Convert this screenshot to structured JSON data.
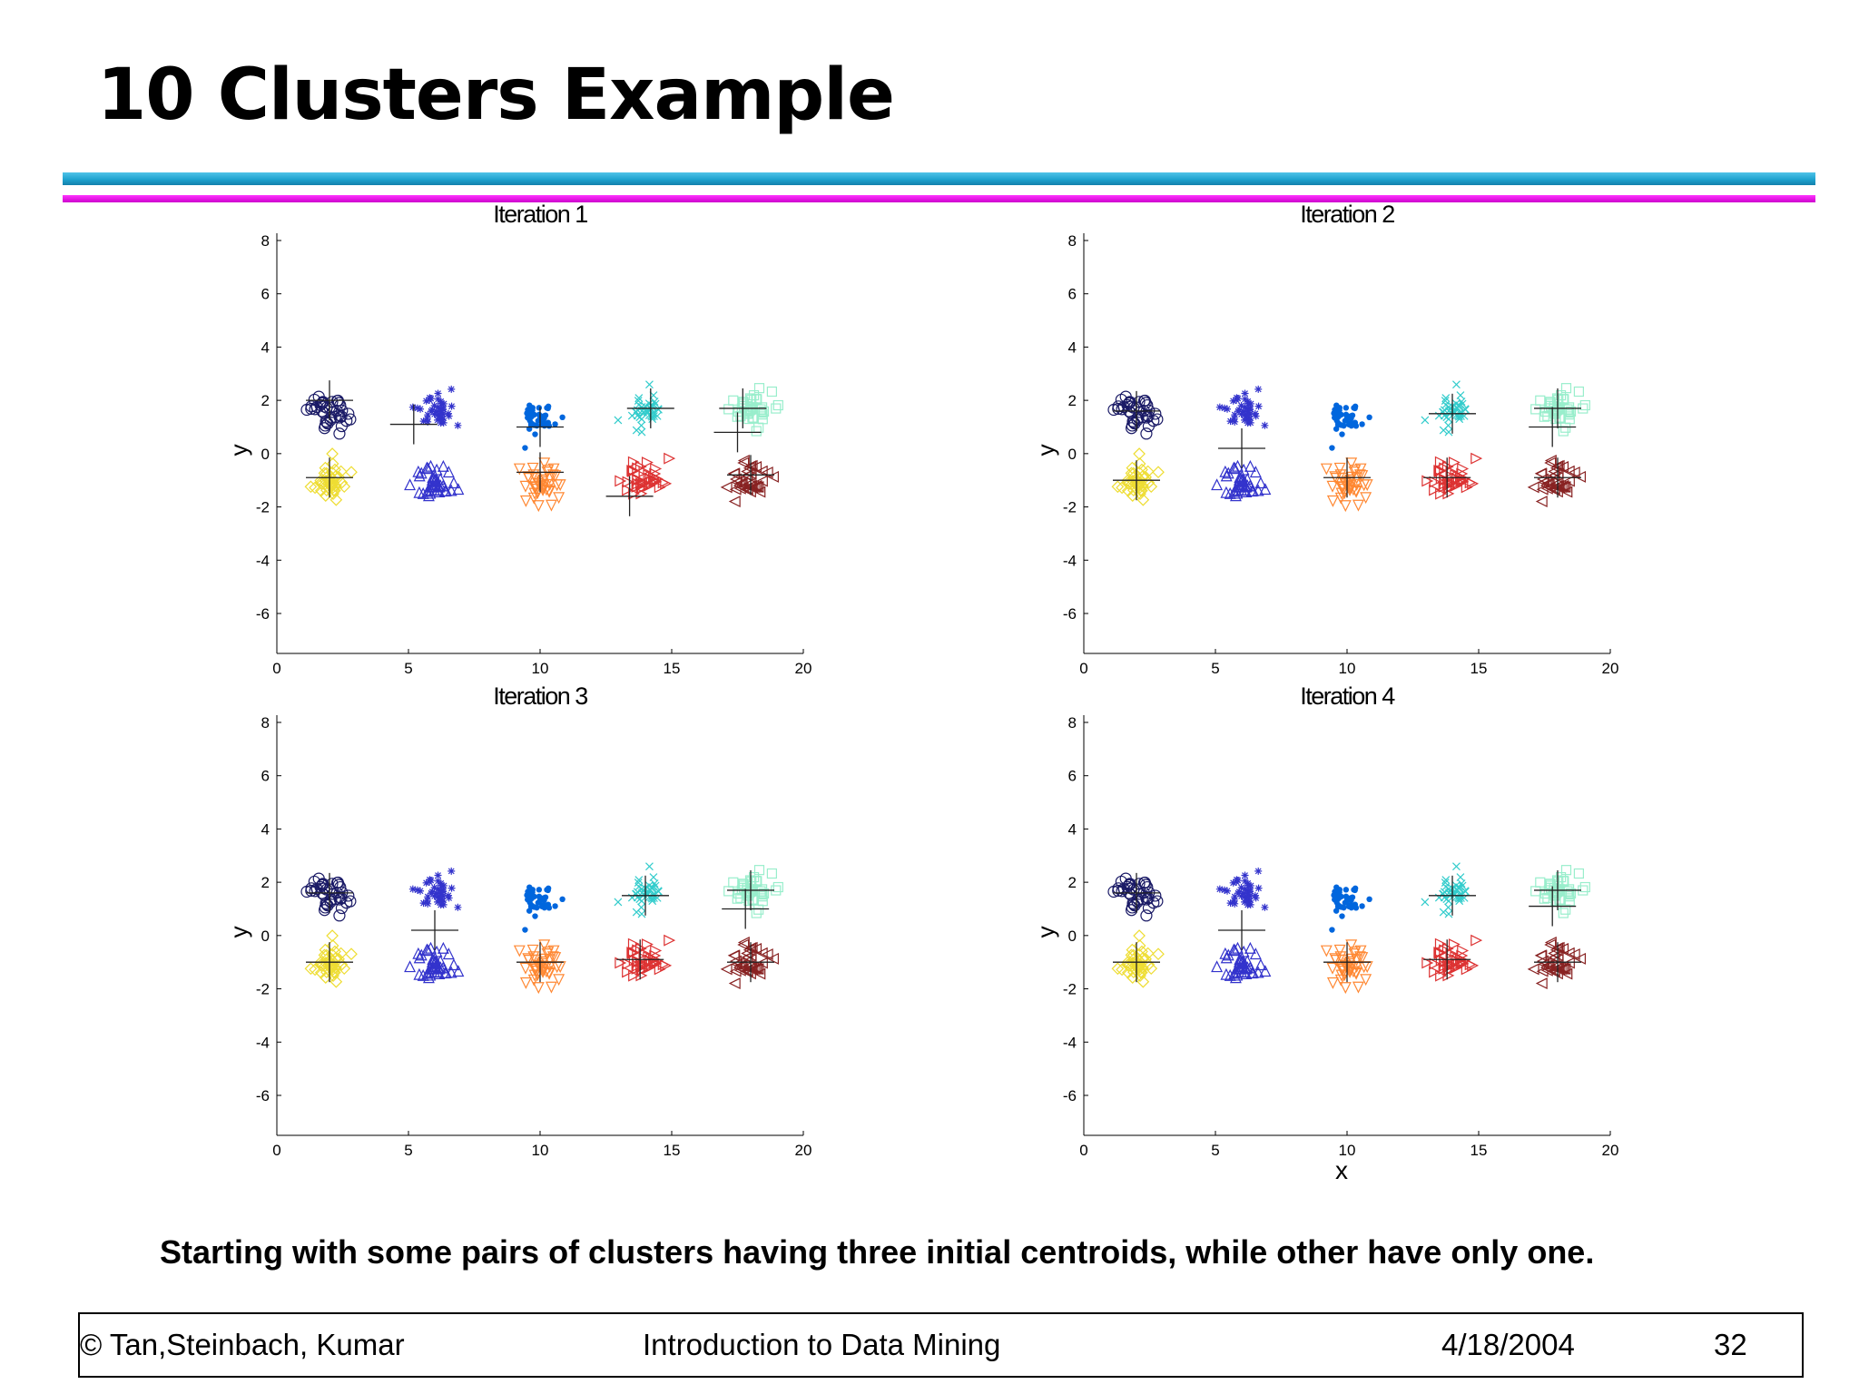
{
  "slide": {
    "title": "10 Clusters Example",
    "caption": "Starting with some pairs of clusters having three initial centroids, while other have only one.",
    "footer": {
      "left": "© Tan,Steinbach, Kumar",
      "center": "Introduction to Data Mining",
      "date": "4/18/2004",
      "page": "32"
    },
    "colors": {
      "cyan_rule": "#1ea3cf",
      "magenta_rule": "#e000e0"
    }
  },
  "chart_data": [
    {
      "type": "scatter",
      "title": "Iteration 1",
      "xlabel": "",
      "ylabel": "y",
      "xlim": [
        0,
        20
      ],
      "ylim": [
        -7.5,
        8
      ],
      "xticks": [
        0,
        5,
        10,
        15,
        20
      ],
      "yticks": [
        8,
        6,
        4,
        2,
        0,
        -2,
        -4,
        -6
      ],
      "clusters": [
        {
          "marker": "circle",
          "color": "#1a1a66",
          "center": [
            2,
            1.6
          ]
        },
        {
          "marker": "star",
          "color": "#3333cc",
          "center": [
            6,
            1.6
          ]
        },
        {
          "marker": "dot",
          "color": "#0066dd",
          "center": [
            10,
            1.4
          ]
        },
        {
          "marker": "x",
          "color": "#33cccc",
          "center": [
            14,
            1.6
          ]
        },
        {
          "marker": "square",
          "color": "#99eecc",
          "center": [
            18,
            1.6
          ]
        },
        {
          "marker": "diamond",
          "color": "#eedd33",
          "center": [
            2,
            -1
          ]
        },
        {
          "marker": "triangle-up",
          "color": "#3333cc",
          "center": [
            6,
            -1.1
          ]
        },
        {
          "marker": "triangle-down",
          "color": "#ff8833",
          "center": [
            10,
            -1.1
          ]
        },
        {
          "marker": "triangle-right",
          "color": "#dd3333",
          "center": [
            14,
            -1
          ]
        },
        {
          "marker": "triangle-left",
          "color": "#882222",
          "center": [
            18,
            -1
          ]
        }
      ],
      "centroids": [
        [
          2,
          2
        ],
        [
          2,
          -0.9
        ],
        [
          5.2,
          1.1
        ],
        [
          10,
          1
        ],
        [
          10,
          -0.7
        ],
        [
          14.2,
          1.7
        ],
        [
          13.4,
          -1.6
        ],
        [
          17.7,
          1.7
        ],
        [
          17.5,
          0.8
        ],
        [
          18,
          -0.8
        ]
      ]
    },
    {
      "type": "scatter",
      "title": "Iteration 2",
      "xlabel": "",
      "ylabel": "y",
      "xlim": [
        0,
        20
      ],
      "ylim": [
        -7.5,
        8
      ],
      "xticks": [
        0,
        5,
        10,
        15,
        20
      ],
      "yticks": [
        8,
        6,
        4,
        2,
        0,
        -2,
        -4,
        -6
      ],
      "clusters": [
        {
          "marker": "circle",
          "color": "#1a1a66",
          "center": [
            2,
            1.6
          ]
        },
        {
          "marker": "star",
          "color": "#3333cc",
          "center": [
            6,
            1.6
          ]
        },
        {
          "marker": "dot",
          "color": "#0066dd",
          "center": [
            10,
            1.4
          ]
        },
        {
          "marker": "x",
          "color": "#33cccc",
          "center": [
            14,
            1.6
          ]
        },
        {
          "marker": "square",
          "color": "#99eecc",
          "center": [
            18,
            1.6
          ]
        },
        {
          "marker": "diamond",
          "color": "#eedd33",
          "center": [
            2,
            -1
          ]
        },
        {
          "marker": "triangle-up",
          "color": "#3333cc",
          "center": [
            6,
            -1.1
          ]
        },
        {
          "marker": "triangle-down",
          "color": "#ff8833",
          "center": [
            10,
            -1.1
          ]
        },
        {
          "marker": "triangle-right",
          "color": "#dd3333",
          "center": [
            14,
            -1
          ]
        },
        {
          "marker": "triangle-left",
          "color": "#882222",
          "center": [
            18,
            -1
          ]
        }
      ],
      "centroids": [
        [
          2,
          1.6
        ],
        [
          2,
          -1
        ],
        [
          6,
          0.2
        ],
        [
          10,
          -0.9
        ],
        [
          14,
          1.5
        ],
        [
          13.8,
          -0.9
        ],
        [
          18,
          1.7
        ],
        [
          17.8,
          1.0
        ],
        [
          18,
          -0.9
        ]
      ]
    },
    {
      "type": "scatter",
      "title": "Iteration 3",
      "xlabel": "",
      "ylabel": "y",
      "xlim": [
        0,
        20
      ],
      "ylim": [
        -7.5,
        8
      ],
      "xticks": [
        0,
        5,
        10,
        15,
        20
      ],
      "yticks": [
        8,
        6,
        4,
        2,
        0,
        -2,
        -4,
        -6
      ],
      "clusters": [
        {
          "marker": "circle",
          "color": "#1a1a66",
          "center": [
            2,
            1.6
          ]
        },
        {
          "marker": "star",
          "color": "#3333cc",
          "center": [
            6,
            1.6
          ]
        },
        {
          "marker": "dot",
          "color": "#0066dd",
          "center": [
            10,
            1.4
          ]
        },
        {
          "marker": "x",
          "color": "#33cccc",
          "center": [
            14,
            1.6
          ]
        },
        {
          "marker": "square",
          "color": "#99eecc",
          "center": [
            18,
            1.6
          ]
        },
        {
          "marker": "diamond",
          "color": "#eedd33",
          "center": [
            2,
            -1
          ]
        },
        {
          "marker": "triangle-up",
          "color": "#3333cc",
          "center": [
            6,
            -1.1
          ]
        },
        {
          "marker": "triangle-down",
          "color": "#ff8833",
          "center": [
            10,
            -1.1
          ]
        },
        {
          "marker": "triangle-right",
          "color": "#dd3333",
          "center": [
            14,
            -1
          ]
        },
        {
          "marker": "triangle-left",
          "color": "#882222",
          "center": [
            18,
            -1
          ]
        }
      ],
      "centroids": [
        [
          2,
          1.6
        ],
        [
          2,
          -1
        ],
        [
          6,
          0.2
        ],
        [
          10,
          -1
        ],
        [
          14,
          1.5
        ],
        [
          13.8,
          -0.9
        ],
        [
          18,
          1.7
        ],
        [
          17.8,
          1.0
        ],
        [
          18,
          -1
        ]
      ]
    },
    {
      "type": "scatter",
      "title": "Iteration 4",
      "xlabel": "x",
      "ylabel": "y",
      "xlim": [
        0,
        20
      ],
      "ylim": [
        -7.5,
        8
      ],
      "xticks": [
        0,
        5,
        10,
        15,
        20
      ],
      "yticks": [
        8,
        6,
        4,
        2,
        0,
        -2,
        -4,
        -6
      ],
      "clusters": [
        {
          "marker": "circle",
          "color": "#1a1a66",
          "center": [
            2,
            1.6
          ]
        },
        {
          "marker": "star",
          "color": "#3333cc",
          "center": [
            6,
            1.6
          ]
        },
        {
          "marker": "dot",
          "color": "#0066dd",
          "center": [
            10,
            1.4
          ]
        },
        {
          "marker": "x",
          "color": "#33cccc",
          "center": [
            14,
            1.6
          ]
        },
        {
          "marker": "square",
          "color": "#99eecc",
          "center": [
            18,
            1.6
          ]
        },
        {
          "marker": "diamond",
          "color": "#eedd33",
          "center": [
            2,
            -1
          ]
        },
        {
          "marker": "triangle-up",
          "color": "#3333cc",
          "center": [
            6,
            -1.1
          ]
        },
        {
          "marker": "triangle-down",
          "color": "#ff8833",
          "center": [
            10,
            -1.1
          ]
        },
        {
          "marker": "triangle-right",
          "color": "#dd3333",
          "center": [
            14,
            -1
          ]
        },
        {
          "marker": "triangle-left",
          "color": "#882222",
          "center": [
            18,
            -1
          ]
        }
      ],
      "centroids": [
        [
          2,
          1.6
        ],
        [
          2,
          -1
        ],
        [
          6,
          0.2
        ],
        [
          10,
          -1
        ],
        [
          14,
          1.5
        ],
        [
          13.8,
          -0.9
        ],
        [
          18,
          1.7
        ],
        [
          17.8,
          1.1
        ],
        [
          18,
          -1
        ]
      ]
    }
  ]
}
